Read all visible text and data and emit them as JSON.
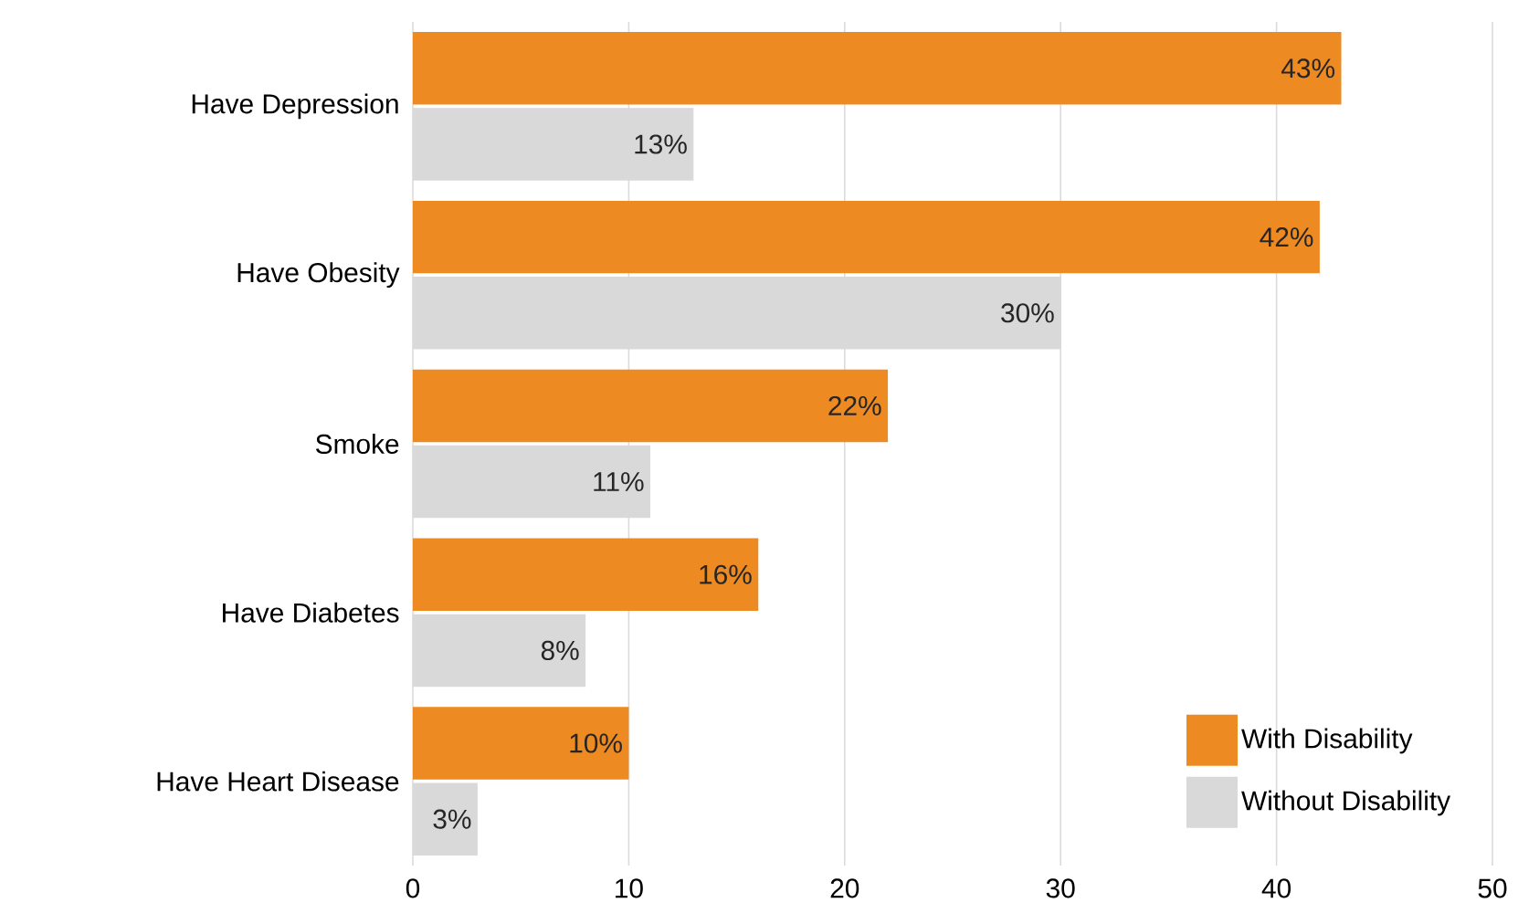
{
  "chart_data": {
    "type": "bar",
    "orientation": "horizontal",
    "categories": [
      "Have Depression",
      "Have Obesity",
      "Smoke",
      "Have Diabetes",
      "Have Heart Disease"
    ],
    "series": [
      {
        "name": "With Disability",
        "color": "#ee8a22",
        "values": [
          43,
          42,
          22,
          16,
          10
        ],
        "value_labels": [
          "43%",
          "42%",
          "22%",
          "16%",
          "10%"
        ]
      },
      {
        "name": "Without Disability",
        "color": "#d9d9d9",
        "values": [
          13,
          30,
          11,
          8,
          3
        ],
        "value_labels": [
          "13%",
          "30%",
          "11%",
          "8%",
          "3%"
        ]
      }
    ],
    "xlim": [
      0,
      50
    ],
    "xticks": [
      0,
      10,
      20,
      30,
      40,
      50
    ],
    "grid": "x",
    "legend": "bottom right"
  }
}
